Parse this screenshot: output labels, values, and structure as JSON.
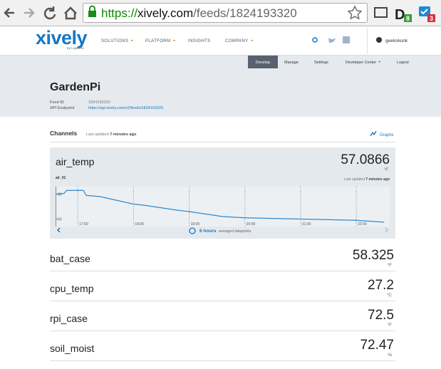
{
  "browser": {
    "url": {
      "scheme": "https://",
      "host": "xively.com",
      "path": "/feeds/1824193320"
    },
    "badges": [
      "8",
      "3"
    ]
  },
  "nav": {
    "logo": "xively",
    "logo_sub": "by LogMeIn",
    "menu": [
      "SOLUTIONS",
      "PLATFORM",
      "INSIGHTS",
      "COMPANY"
    ],
    "user": "geekskunk"
  },
  "subnav": {
    "tabs": [
      "Develop",
      "Manage",
      "Settings",
      "Developer Center",
      "Logout"
    ]
  },
  "feed": {
    "title": "GardenPi",
    "fields": [
      {
        "label": "Feed ID",
        "value": "1824193320"
      },
      {
        "label": "API Endpoint",
        "value": "https://api.xively.com/v2/feeds/1824193320"
      }
    ]
  },
  "channels": {
    "heading": "Channels",
    "updated_label": "Last updated",
    "updated_value": "7 minutes ago",
    "graphs_link": "Graphs",
    "featured": {
      "name": "air_temp",
      "value": "57.0866",
      "unit": "°F",
      "stream": "air_01",
      "updated_label": "Last updated",
      "updated_value": "7 minutes ago",
      "range": "6 hours",
      "range_note": "averaged datapoints",
      "graph": {
        "xlim": [
          16.6,
          22.6
        ],
        "ylim": [
          54,
          86
        ],
        "yticks": [
          80,
          60
        ],
        "xticks": [
          {
            "value": 17,
            "label": "17:00"
          },
          {
            "value": 18,
            "label": "18:00"
          },
          {
            "value": 19,
            "label": "19:00"
          },
          {
            "value": 20,
            "label": "20:00"
          },
          {
            "value": 21,
            "label": "21:00"
          },
          {
            "value": 22,
            "label": "22:00"
          }
        ],
        "x": [
          16.6,
          16.75,
          16.8,
          17.1,
          17.15,
          17.4,
          17.6,
          17.8,
          18.0,
          18.2,
          18.5,
          18.8,
          19.0,
          19.3,
          19.6,
          20.0,
          20.5,
          21.0,
          21.5,
          22.0,
          22.5
        ],
        "values": [
          80,
          80.5,
          83,
          83,
          79,
          78,
          76,
          74,
          72,
          71,
          69,
          67,
          66,
          64,
          62,
          61,
          60.5,
          60,
          59.5,
          59,
          57.5
        ]
      }
    },
    "list": [
      {
        "name": "bat_case",
        "value": "58.325",
        "unit": "°F"
      },
      {
        "name": "cpu_temp",
        "value": "27.2",
        "unit": "°C"
      },
      {
        "name": "rpi_case",
        "value": "72.5",
        "unit": "°F"
      },
      {
        "name": "soil_moist",
        "value": "72.47",
        "unit": "%"
      }
    ]
  }
}
